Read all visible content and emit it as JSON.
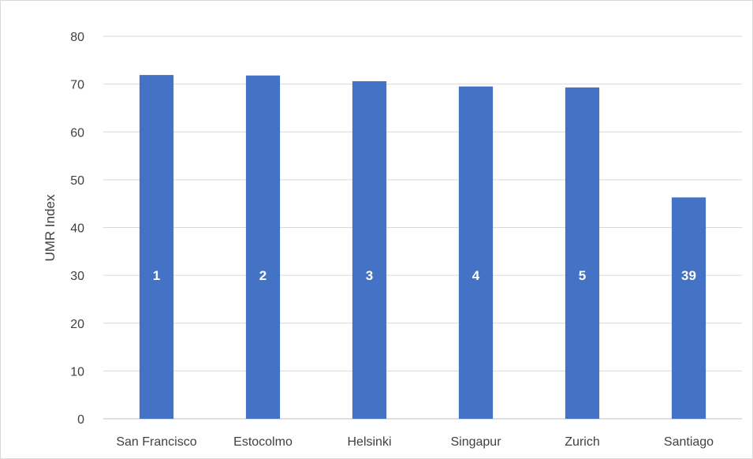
{
  "chart_data": {
    "type": "bar",
    "title": "",
    "xlabel": "",
    "ylabel": "UMR Index",
    "categories": [
      "San Francisco",
      "Estocolmo",
      "Helsinki",
      "Singapur",
      "Zurich",
      "Santiago"
    ],
    "series": [
      {
        "values": [
          71.9,
          71.8,
          70.6,
          69.5,
          69.3,
          46.3
        ],
        "data_labels": [
          "1",
          "2",
          "3",
          "4",
          "5",
          "39"
        ],
        "color": "#4472c4"
      }
    ],
    "ylim": [
      0,
      80
    ],
    "yticks": [
      0,
      10,
      20,
      30,
      40,
      50,
      60,
      70,
      80
    ],
    "data_label_y": 30,
    "grid": true,
    "legend": "none"
  }
}
